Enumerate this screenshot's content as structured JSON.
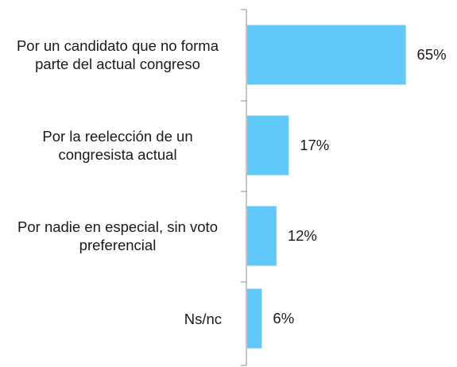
{
  "chart_data": {
    "type": "bar",
    "orientation": "horizontal",
    "categories": [
      "Por un candidato que no forma parte del actual congreso",
      "Por la reelección de un congresista actual",
      "Por nadie en especial, sin voto preferencial",
      "Ns/nc"
    ],
    "values": [
      65,
      17,
      12,
      6
    ],
    "value_labels": [
      "65%",
      "17%",
      "12%",
      "6%"
    ],
    "color": "#61c8fa"
  }
}
